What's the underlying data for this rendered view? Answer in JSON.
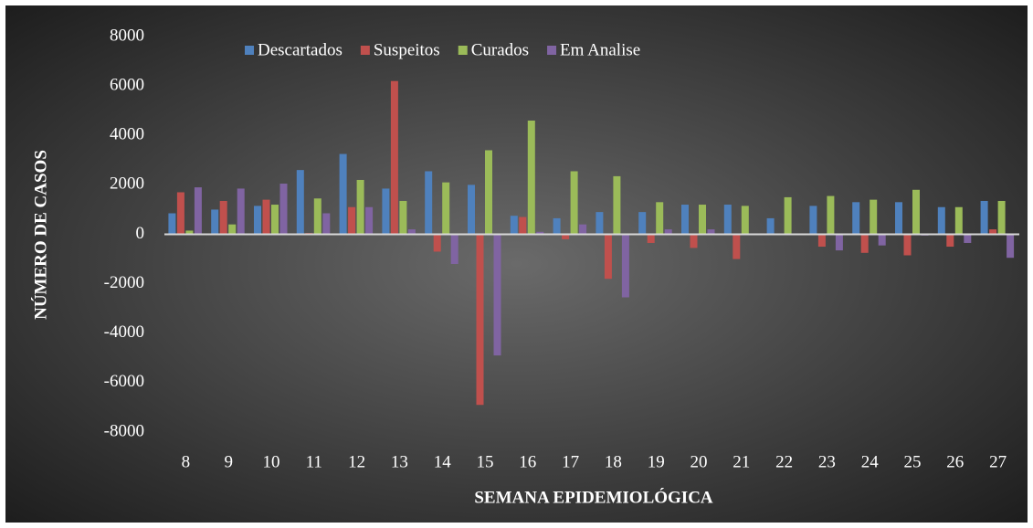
{
  "chart_data": {
    "type": "bar",
    "x_label": "SEMANA EPIDEMIOLÓGICA",
    "y_label": "NÚMERO DE CASOS",
    "categories": [
      "8",
      "9",
      "10",
      "11",
      "12",
      "13",
      "14",
      "15",
      "16",
      "17",
      "18",
      "19",
      "20",
      "21",
      "22",
      "23",
      "24",
      "25",
      "26",
      "27"
    ],
    "series": [
      {
        "name": "Descartados",
        "color": "#4f81bd",
        "values": [
          850,
          1000,
          1150,
          2600,
          3250,
          1850,
          2550,
          2000,
          750,
          650,
          900,
          900,
          1200,
          1200,
          650,
          1150,
          1300,
          1300,
          1100,
          1350
        ]
      },
      {
        "name": "Suspeitos",
        "color": "#c0504d",
        "values": [
          1700,
          1350,
          1400,
          50,
          1100,
          6200,
          -700,
          -6900,
          700,
          -200,
          -1800,
          -350,
          -550,
          -1000,
          0,
          -500,
          -750,
          -850,
          -500,
          200
        ]
      },
      {
        "name": "Curados",
        "color": "#9bbb59",
        "values": [
          150,
          400,
          1200,
          1450,
          2200,
          1350,
          2100,
          3400,
          4600,
          2550,
          2350,
          1300,
          1200,
          1150,
          1500,
          1550,
          1400,
          1800,
          1100,
          1350
        ]
      },
      {
        "name": "Em Analise",
        "color": "#8064a2",
        "values": [
          1900,
          1850,
          2050,
          850,
          1100,
          200,
          -1200,
          -4900,
          100,
          400,
          -2550,
          200,
          200,
          0,
          0,
          -650,
          -450,
          -50,
          -350,
          -950
        ]
      }
    ],
    "ylim": [
      -8000,
      8000
    ],
    "yticks": [
      -8000,
      -6000,
      -4000,
      -2000,
      0,
      2000,
      4000,
      6000,
      8000
    ],
    "legend": "top"
  }
}
